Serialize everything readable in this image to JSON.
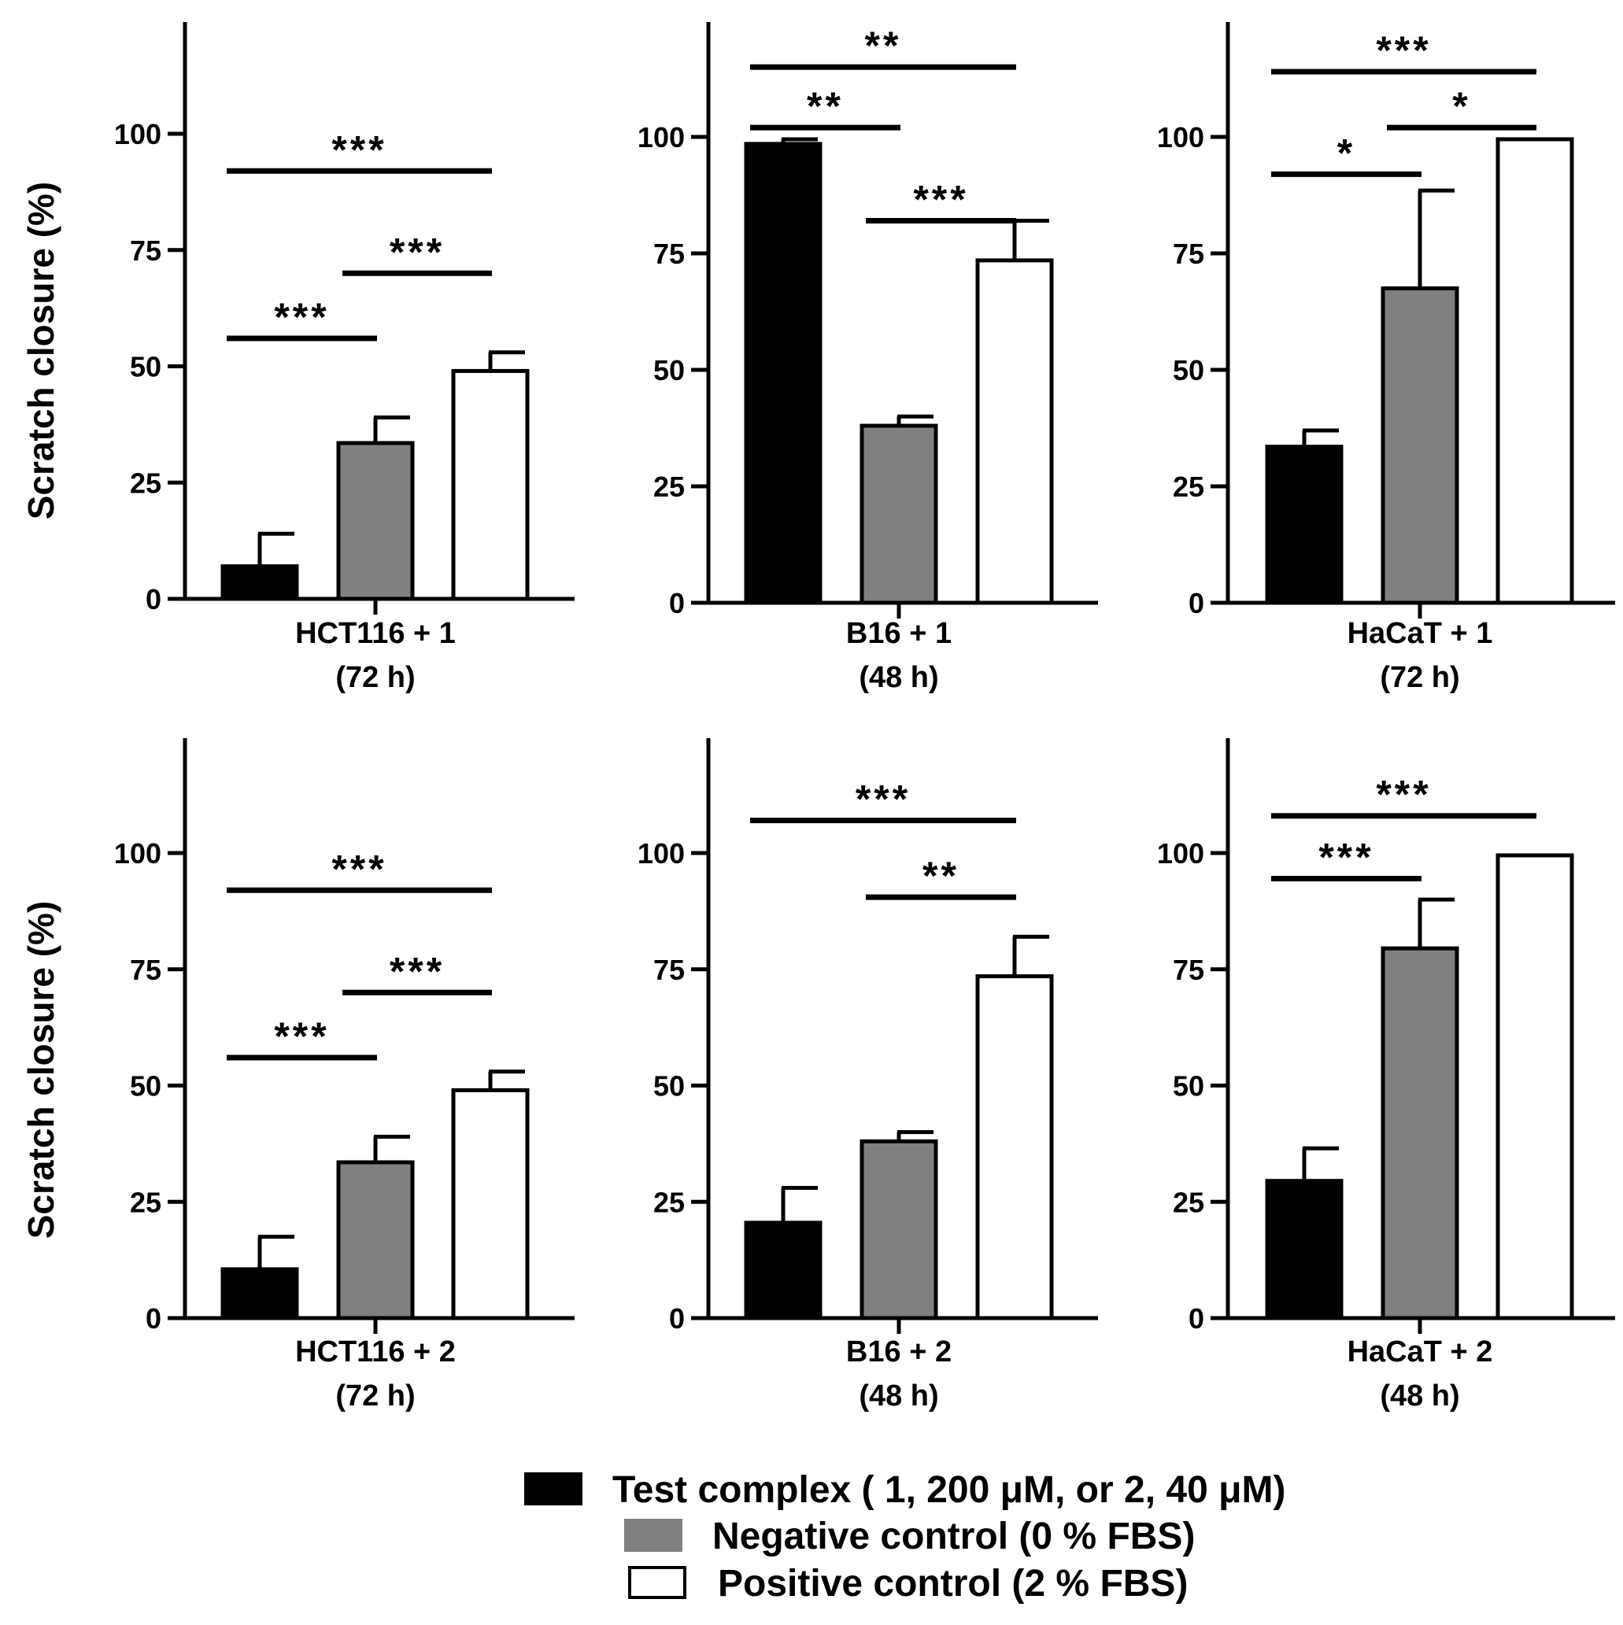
{
  "chart_data": [
    {
      "type": "bar",
      "panel": "HCT116 + 1",
      "xlabel": [
        "HCT116 + 1",
        "(72 h)"
      ],
      "ylabel": "Scratch closure  (%)",
      "ylim": [
        0,
        125
      ],
      "yticks": [
        0,
        25,
        50,
        75,
        100
      ],
      "values": [
        7,
        33.5,
        49
      ],
      "errors": [
        7,
        5.5,
        4
      ],
      "significance": [
        {
          "from": 0,
          "to": 1,
          "y": 56,
          "label": "***"
        },
        {
          "from": 1,
          "to": 2,
          "y": 70,
          "label": "***"
        },
        {
          "from": 0,
          "to": 2,
          "y": 92,
          "label": "***"
        }
      ]
    },
    {
      "type": "bar",
      "panel": "B16 + 1",
      "xlabel": [
        "B16 + 1",
        "(48 h)"
      ],
      "ylabel": "",
      "ylim": [
        0,
        125
      ],
      "yticks": [
        0,
        25,
        50,
        75,
        100
      ],
      "values": [
        98.5,
        38,
        73.5
      ],
      "errors": [
        1,
        2,
        8.5
      ],
      "significance": [
        {
          "from": 1,
          "to": 2,
          "y": 82,
          "label": "***"
        },
        {
          "from": 0,
          "to": 1,
          "y": 102,
          "label": "**"
        },
        {
          "from": 0,
          "to": 2,
          "y": 115,
          "label": "**"
        }
      ]
    },
    {
      "type": "bar",
      "panel": "HaCaT + 1",
      "xlabel": [
        "HaCaT + 1",
        "(72 h)"
      ],
      "ylabel": "",
      "ylim": [
        0,
        125
      ],
      "yticks": [
        0,
        25,
        50,
        75,
        100
      ],
      "values": [
        33.5,
        67.5,
        99.5
      ],
      "errors": [
        3.5,
        21,
        0
      ],
      "significance": [
        {
          "from": 0,
          "to": 1,
          "y": 92,
          "label": "*"
        },
        {
          "from": 1,
          "to": 2,
          "y": 102,
          "label": "*"
        },
        {
          "from": 0,
          "to": 2,
          "y": 114,
          "label": "***"
        }
      ]
    },
    {
      "type": "bar",
      "panel": "HCT116 + 2",
      "xlabel": [
        "HCT116 + 2",
        "(72 h)"
      ],
      "ylabel": "Scratch closure  (%)",
      "ylim": [
        0,
        125
      ],
      "yticks": [
        0,
        25,
        50,
        75,
        100
      ],
      "values": [
        10.5,
        33.5,
        49
      ],
      "errors": [
        7,
        5.5,
        4
      ],
      "significance": [
        {
          "from": 0,
          "to": 1,
          "y": 56,
          "label": "***"
        },
        {
          "from": 1,
          "to": 2,
          "y": 70,
          "label": "***"
        },
        {
          "from": 0,
          "to": 2,
          "y": 92,
          "label": "***"
        }
      ]
    },
    {
      "type": "bar",
      "panel": "B16 + 2",
      "xlabel": [
        "B16 + 2",
        "(48 h)"
      ],
      "ylabel": "",
      "ylim": [
        0,
        125
      ],
      "yticks": [
        0,
        25,
        50,
        75,
        100
      ],
      "values": [
        20.5,
        38,
        73.5
      ],
      "errors": [
        7.5,
        2,
        8.5
      ],
      "significance": [
        {
          "from": 1,
          "to": 2,
          "y": 90.5,
          "label": "**"
        },
        {
          "from": 0,
          "to": 2,
          "y": 107,
          "label": "***"
        }
      ]
    },
    {
      "type": "bar",
      "panel": "HaCaT + 2",
      "xlabel": [
        "HaCaT + 2",
        "(48 h)"
      ],
      "ylabel": "",
      "ylim": [
        0,
        125
      ],
      "yticks": [
        0,
        25,
        50,
        75,
        100
      ],
      "values": [
        29.5,
        79.5,
        99.5
      ],
      "errors": [
        7,
        10.5,
        0
      ],
      "significance": [
        {
          "from": 0,
          "to": 1,
          "y": 94.5,
          "label": "***"
        },
        {
          "from": 0,
          "to": 2,
          "y": 108,
          "label": "***"
        }
      ]
    }
  ],
  "legend": [
    {
      "label": "Test complex ( 1, 200 μM, or 2, 40 μM)",
      "color": "#000000"
    },
    {
      "label": "Negative control  (0 % FBS)",
      "color": "#808080"
    },
    {
      "label": "Positive control  (2 % FBS)",
      "color": "#ffffff"
    }
  ],
  "colors": {
    "bars": [
      "#000000",
      "#808080",
      "#ffffff"
    ],
    "stroke": "#000000"
  }
}
